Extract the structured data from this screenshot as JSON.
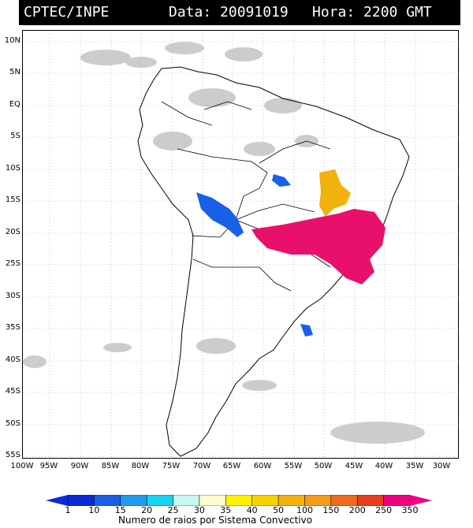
{
  "header": {
    "source": "CPTEC/INPE",
    "date": "Data: 20091019",
    "hour": "Hora: 2200 GMT"
  },
  "lat_labels": [
    "10N",
    "5N",
    "EQ",
    "5S",
    "10S",
    "15S",
    "20S",
    "25S",
    "30S",
    "35S",
    "40S",
    "45S",
    "50S",
    "55S"
  ],
  "lon_labels": [
    "100W",
    "95W",
    "90W",
    "85W",
    "80W",
    "75W",
    "70W",
    "65W",
    "60W",
    "55W",
    "50W",
    "45W",
    "40W",
    "35W",
    "30W"
  ],
  "legend": {
    "ticks": [
      "1",
      "10",
      "15",
      "20",
      "25",
      "30",
      "35",
      "40",
      "50",
      "100",
      "150",
      "200",
      "250",
      "350"
    ],
    "colors": [
      "#0a2bd6",
      "#1a5fe8",
      "#1f9bf0",
      "#17d2f2",
      "#c7f7f3",
      "#fbfbcf",
      "#fff200",
      "#f7d200",
      "#f3b10d",
      "#f59a1a",
      "#f06b1e",
      "#e83e1e",
      "#f0007e"
    ],
    "title": "Numero de raios por Sistema Convectivo"
  },
  "palette": {
    "cloud": "#bdbdbd",
    "blue_system": "#1a5fe8",
    "orange_system": "#f3b10d",
    "magenta_system": "#e8106a"
  }
}
